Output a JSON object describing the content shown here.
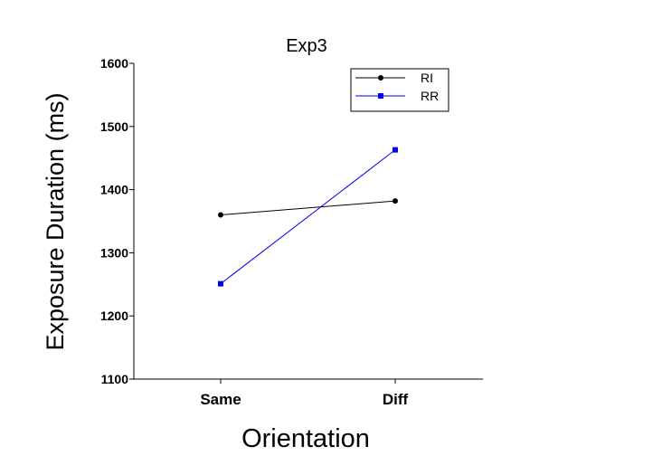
{
  "chart_data": {
    "type": "line",
    "title": "Exp3",
    "xlabel": "Orientation",
    "ylabel": "Exposure Duration (ms)",
    "categories": [
      "Same",
      "Diff"
    ],
    "ylim": [
      1100,
      1600
    ],
    "yticks": [
      1100,
      1200,
      1300,
      1400,
      1500,
      1600
    ],
    "grid": false,
    "legend_position": "top-right",
    "series": [
      {
        "name": "RI",
        "values": [
          1360,
          1382
        ],
        "color": "#000000",
        "marker": "circle"
      },
      {
        "name": "RR",
        "values": [
          1251,
          1463
        ],
        "color": "#0000ee",
        "marker": "square"
      }
    ]
  }
}
